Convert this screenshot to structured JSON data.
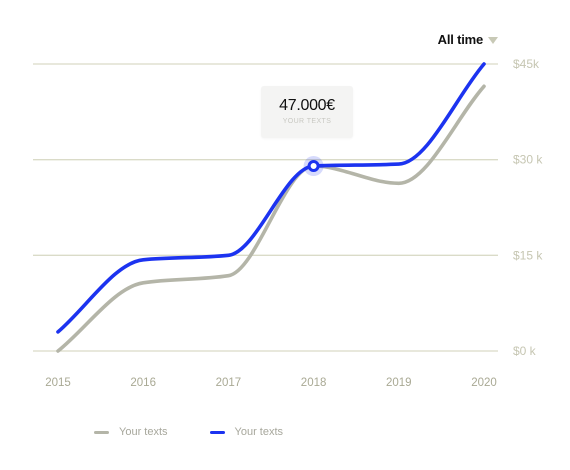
{
  "range_selector": {
    "label": "All time",
    "icon": "triangle-down-icon"
  },
  "tooltip": {
    "value": "47.000€",
    "label": "YOUR TEXTS"
  },
  "colors": {
    "series_gray": "#b4b5a8",
    "series_blue": "#1c33f0",
    "grid": "#dadbc8",
    "tick": "#c6c6b2",
    "year": "#a9a994"
  },
  "chart_data": {
    "type": "line",
    "title": "",
    "xlabel": "",
    "ylabel": "",
    "x": [
      2015,
      2016,
      2017,
      2018,
      2019,
      2020
    ],
    "x_tick_labels": [
      "2015",
      "2016",
      "2017",
      "2018",
      "2019",
      "2020"
    ],
    "ylim": [
      0,
      45000
    ],
    "y_ticks": [
      0,
      15000,
      30000,
      45000
    ],
    "y_tick_labels": [
      "$0 k",
      "$15 k",
      "$30 k",
      "$45k"
    ],
    "grid": true,
    "legend_position": "bottom-left",
    "series": [
      {
        "name": "Your texts",
        "color": "#b4b5a8",
        "values": [
          0,
          10700,
          11800,
          29000,
          26300,
          41500
        ]
      },
      {
        "name": "Your texts",
        "color": "#1c33f0",
        "values": [
          3000,
          14300,
          15000,
          29000,
          29300,
          45000
        ]
      }
    ],
    "highlight": {
      "series_index": 1,
      "x": 2018,
      "y": 29000
    }
  }
}
